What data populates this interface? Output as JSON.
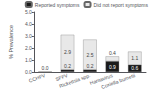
{
  "chart_data": {
    "type": "bar",
    "stacked": true,
    "categories": [
      "CCHFV",
      "SFFV",
      "Rickettsia spp.",
      "Hantavirus",
      "Coxiella burnetii"
    ],
    "series": [
      {
        "name": "Reported symptoms",
        "color": "#1a1a1a",
        "values": [
          0.0,
          0.2,
          0.2,
          0.9,
          0.6
        ],
        "value_labels": [
          "0.0",
          "0.2",
          "0.2",
          "0.9",
          "0.6"
        ]
      },
      {
        "name": "Did not report symptoms",
        "color": "#e8e8e8",
        "values": [
          0.0,
          2.9,
          2.5,
          0.4,
          1.1
        ],
        "value_labels": [
          null,
          "2.9",
          "2.5",
          "0.4",
          "1.1"
        ]
      }
    ],
    "ylabel": "% Prevalence",
    "ylim": [
      0,
      5.0
    ],
    "yticks": [
      {
        "value": 0.0,
        "label": "0.0"
      },
      {
        "value": 1.0,
        "label": "1.0"
      },
      {
        "value": 2.0,
        "label": "2.0"
      },
      {
        "value": 3.0,
        "label": "3.0"
      },
      {
        "value": 4.0,
        "label": "4.0"
      },
      {
        "value": 5.0,
        "label": "5.0"
      }
    ],
    "data_labels": true,
    "legend": "upper right",
    "grid": false
  }
}
